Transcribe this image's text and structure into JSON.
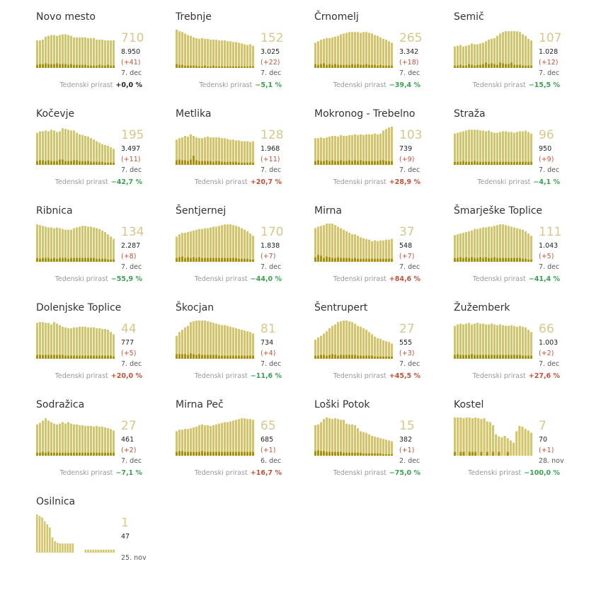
{
  "colors": {
    "area": "#d4c56a",
    "bar": "#a89008",
    "value": "#d6c88a",
    "neg": "#3aa055",
    "pos": "#c0513a"
  },
  "weekly_label": "Tedenski prirast",
  "chart_data": [
    {
      "type": "bar",
      "title": "Novo mesto",
      "big": "710",
      "total": "8.950",
      "change": "(+41)",
      "date": "7. dec",
      "weekly": "+0,0 %",
      "trend": "zero",
      "area": [
        72,
        72,
        74,
        82,
        84,
        86,
        86,
        84,
        86,
        88,
        88,
        86,
        84,
        80,
        80,
        80,
        80,
        80,
        78,
        78,
        78,
        74,
        74,
        74,
        72,
        72,
        72,
        72
      ],
      "bars": [
        8,
        10,
        10,
        12,
        10,
        10,
        10,
        12,
        10,
        10,
        10,
        8,
        10,
        8,
        8,
        8,
        8,
        8,
        6,
        6,
        6,
        6,
        8,
        6,
        6,
        8,
        6,
        6
      ]
    },
    {
      "type": "bar",
      "title": "Trebnje",
      "big": "152",
      "total": "3.025",
      "change": "(+22)",
      "date": "7. dec",
      "weekly": "−5,1 %",
      "trend": "neg",
      "area": [
        100,
        96,
        94,
        90,
        86,
        84,
        80,
        78,
        76,
        78,
        76,
        76,
        74,
        74,
        74,
        72,
        72,
        72,
        70,
        70,
        68,
        68,
        66,
        64,
        62,
        60,
        62,
        58
      ],
      "bars": [
        10,
        8,
        8,
        6,
        6,
        6,
        6,
        6,
        4,
        4,
        6,
        4,
        4,
        6,
        4,
        4,
        4,
        4,
        4,
        4,
        4,
        4,
        4,
        4,
        4,
        4,
        4,
        4
      ]
    },
    {
      "type": "bar",
      "title": "Črnomelj",
      "big": "265",
      "total": "3.342",
      "change": "(+18)",
      "date": "7. dec",
      "weekly": "−39,4 %",
      "trend": "neg",
      "area": [
        66,
        70,
        74,
        76,
        78,
        78,
        80,
        82,
        84,
        88,
        90,
        92,
        94,
        94,
        94,
        94,
        92,
        94,
        94,
        92,
        90,
        86,
        84,
        80,
        76,
        74,
        70,
        66
      ],
      "bars": [
        10,
        8,
        10,
        12,
        8,
        10,
        8,
        10,
        8,
        8,
        8,
        8,
        8,
        10,
        8,
        10,
        8,
        8,
        10,
        8,
        8,
        8,
        6,
        8,
        6,
        6,
        6,
        6
      ]
    },
    {
      "type": "bar",
      "title": "Semič",
      "big": "107",
      "total": "1.028",
      "change": "(+12)",
      "date": "7. dec",
      "weekly": "−15,5 %",
      "trend": "neg",
      "area": [
        56,
        58,
        60,
        56,
        58,
        60,
        64,
        62,
        62,
        64,
        66,
        70,
        74,
        76,
        78,
        84,
        90,
        94,
        96,
        96,
        96,
        96,
        96,
        94,
        88,
        84,
        76,
        72
      ],
      "bars": [
        6,
        6,
        8,
        6,
        6,
        10,
        8,
        6,
        8,
        8,
        10,
        14,
        10,
        12,
        10,
        8,
        14,
        12,
        10,
        10,
        14,
        8,
        8,
        8,
        6,
        6,
        6,
        6
      ]
    },
    {
      "type": "bar",
      "title": "Kočevje",
      "big": "195",
      "total": "3.497",
      "change": "(+11)",
      "date": "7. dec",
      "weekly": "−42,7 %",
      "trend": "neg",
      "area": [
        84,
        88,
        88,
        90,
        88,
        92,
        90,
        86,
        88,
        96,
        94,
        92,
        90,
        90,
        84,
        80,
        78,
        76,
        74,
        70,
        66,
        62,
        58,
        54,
        52,
        50,
        46,
        42
      ],
      "bars": [
        10,
        12,
        12,
        10,
        12,
        10,
        10,
        10,
        14,
        14,
        10,
        10,
        10,
        12,
        12,
        10,
        10,
        10,
        10,
        8,
        8,
        8,
        8,
        8,
        6,
        6,
        6,
        6
      ]
    },
    {
      "type": "bar",
      "title": "Metlika",
      "big": "128",
      "total": "1.968",
      "change": "(+11)",
      "date": "7. dec",
      "weekly": "+20,7 %",
      "trend": "pos",
      "area": [
        66,
        70,
        72,
        76,
        74,
        80,
        76,
        72,
        70,
        70,
        72,
        74,
        72,
        72,
        72,
        72,
        70,
        70,
        68,
        66,
        66,
        64,
        64,
        62,
        62,
        62,
        60,
        62
      ],
      "bars": [
        12,
        14,
        12,
        12,
        10,
        14,
        24,
        12,
        10,
        10,
        10,
        10,
        10,
        8,
        10,
        10,
        8,
        8,
        8,
        8,
        8,
        8,
        6,
        6,
        6,
        6,
        6,
        6
      ]
    },
    {
      "type": "bar",
      "title": "Mokronog - Trebelno",
      "big": "103",
      "total": "739",
      "change": "(+9)",
      "date": "7. dec",
      "weekly": "+28,9 %",
      "trend": "pos",
      "area": [
        70,
        70,
        72,
        70,
        72,
        74,
        76,
        76,
        74,
        78,
        76,
        76,
        78,
        78,
        80,
        78,
        80,
        78,
        80,
        80,
        80,
        82,
        80,
        82,
        90,
        94,
        98,
        100
      ],
      "bars": [
        10,
        12,
        10,
        10,
        12,
        10,
        12,
        10,
        10,
        12,
        10,
        10,
        12,
        10,
        12,
        10,
        12,
        10,
        10,
        10,
        10,
        10,
        10,
        12,
        12,
        10,
        10,
        10
      ]
    },
    {
      "type": "bar",
      "title": "Straža",
      "big": "96",
      "total": "950",
      "change": "(+9)",
      "date": "7. dec",
      "weekly": "−4,1 %",
      "trend": "neg",
      "area": [
        82,
        84,
        86,
        88,
        90,
        92,
        92,
        92,
        92,
        90,
        90,
        88,
        90,
        86,
        84,
        84,
        86,
        88,
        88,
        86,
        86,
        84,
        86,
        88,
        88,
        90,
        86,
        82
      ],
      "bars": [
        8,
        8,
        8,
        10,
        8,
        8,
        8,
        10,
        8,
        8,
        8,
        8,
        8,
        8,
        8,
        8,
        8,
        8,
        8,
        8,
        8,
        8,
        8,
        8,
        8,
        8,
        8,
        8
      ]
    },
    {
      "type": "bar",
      "title": "Ribnica",
      "big": "134",
      "total": "2.287",
      "change": "(+8)",
      "date": "7. dec",
      "weekly": "−55,9 %",
      "trend": "neg",
      "area": [
        98,
        96,
        94,
        92,
        90,
        90,
        88,
        90,
        88,
        86,
        84,
        84,
        84,
        88,
        90,
        92,
        94,
        94,
        92,
        92,
        90,
        88,
        86,
        82,
        78,
        72,
        66,
        60
      ],
      "bars": [
        10,
        8,
        10,
        10,
        10,
        8,
        10,
        8,
        10,
        10,
        10,
        8,
        10,
        10,
        10,
        10,
        10,
        10,
        10,
        10,
        10,
        8,
        8,
        8,
        8,
        6,
        6,
        6
      ]
    },
    {
      "type": "bar",
      "title": "Šentjernej",
      "big": "170",
      "total": "1.838",
      "change": "(+7)",
      "date": "7. dec",
      "weekly": "−44,0 %",
      "trend": "neg",
      "area": [
        66,
        72,
        76,
        76,
        78,
        80,
        82,
        84,
        86,
        86,
        88,
        88,
        90,
        92,
        92,
        94,
        96,
        98,
        98,
        98,
        96,
        94,
        92,
        88,
        84,
        80,
        74,
        68
      ],
      "bars": [
        10,
        12,
        14,
        10,
        12,
        10,
        12,
        10,
        12,
        10,
        10,
        10,
        10,
        10,
        10,
        10,
        10,
        10,
        10,
        10,
        10,
        10,
        8,
        8,
        8,
        8,
        6,
        6
      ]
    },
    {
      "type": "bar",
      "title": "Mirna",
      "big": "37",
      "total": "548",
      "change": "(+7)",
      "date": "7. dec",
      "weekly": "+84,6 %",
      "trend": "pos",
      "area": [
        88,
        92,
        94,
        96,
        100,
        104,
        100,
        96,
        92,
        88,
        84,
        80,
        76,
        72,
        72,
        68,
        64,
        62,
        60,
        58,
        54,
        56,
        54,
        56,
        56,
        58,
        58,
        60
      ],
      "bars": [
        12,
        18,
        16,
        10,
        14,
        12,
        10,
        10,
        12,
        10,
        10,
        10,
        10,
        8,
        10,
        8,
        8,
        8,
        8,
        8,
        8,
        8,
        8,
        8,
        8,
        8,
        8,
        8
      ]
    },
    {
      "type": "bar",
      "title": "Šmarješke Toplice",
      "big": "111",
      "total": "1.043",
      "change": "(+5)",
      "date": "7. dec",
      "weekly": "−41,4 %",
      "trend": "neg",
      "area": [
        70,
        72,
        74,
        76,
        78,
        80,
        82,
        86,
        86,
        88,
        90,
        90,
        92,
        92,
        94,
        96,
        98,
        98,
        96,
        94,
        92,
        90,
        88,
        86,
        84,
        80,
        74,
        68
      ],
      "bars": [
        10,
        10,
        12,
        10,
        12,
        10,
        12,
        10,
        10,
        12,
        10,
        12,
        10,
        10,
        12,
        10,
        10,
        10,
        10,
        10,
        10,
        10,
        10,
        10,
        8,
        8,
        6,
        6
      ]
    },
    {
      "type": "bar",
      "title": "Dolenjske Toplice",
      "big": "44",
      "total": "777",
      "change": "(+5)",
      "date": "7. dec",
      "weekly": "+20,0 %",
      "trend": "pos",
      "area": [
        94,
        96,
        96,
        94,
        94,
        90,
        96,
        92,
        88,
        84,
        82,
        80,
        80,
        82,
        82,
        84,
        84,
        84,
        82,
        82,
        82,
        80,
        80,
        78,
        78,
        76,
        70,
        64
      ],
      "bars": [
        10,
        10,
        10,
        10,
        10,
        10,
        10,
        10,
        10,
        10,
        8,
        8,
        8,
        8,
        8,
        8,
        8,
        8,
        8,
        8,
        8,
        8,
        8,
        8,
        8,
        8,
        8,
        6
      ]
    },
    {
      "type": "bar",
      "title": "Škocjan",
      "big": "81",
      "total": "734",
      "change": "(+4)",
      "date": "7. dec",
      "weekly": "−11,6 %",
      "trend": "neg",
      "area": [
        60,
        70,
        76,
        82,
        86,
        96,
        98,
        100,
        100,
        100,
        100,
        98,
        96,
        94,
        92,
        90,
        88,
        88,
        86,
        84,
        82,
        80,
        78,
        76,
        74,
        72,
        70,
        66
      ],
      "bars": [
        12,
        12,
        12,
        12,
        10,
        14,
        12,
        10,
        12,
        10,
        10,
        10,
        10,
        10,
        10,
        8,
        8,
        8,
        8,
        8,
        8,
        8,
        8,
        8,
        8,
        8,
        8,
        8
      ]
    },
    {
      "type": "bar",
      "title": "Šentrupert",
      "big": "27",
      "total": "555",
      "change": "(+3)",
      "date": "7. dec",
      "weekly": "+45,5 %",
      "trend": "pos",
      "area": [
        50,
        56,
        60,
        66,
        72,
        80,
        86,
        90,
        96,
        98,
        100,
        100,
        98,
        96,
        92,
        86,
        84,
        80,
        76,
        70,
        64,
        58,
        54,
        52,
        48,
        46,
        44,
        40
      ],
      "bars": [
        8,
        8,
        10,
        10,
        8,
        10,
        12,
        10,
        8,
        10,
        10,
        10,
        10,
        10,
        10,
        8,
        8,
        8,
        8,
        8,
        8,
        6,
        6,
        6,
        6,
        6,
        6,
        6
      ]
    },
    {
      "type": "bar",
      "title": "Žužemberk",
      "big": "66",
      "total": "1.003",
      "change": "(+2)",
      "date": "7. dec",
      "weekly": "+27,6 %",
      "trend": "pos",
      "area": [
        86,
        90,
        92,
        90,
        92,
        94,
        90,
        92,
        94,
        92,
        92,
        90,
        90,
        92,
        90,
        88,
        90,
        88,
        86,
        86,
        88,
        86,
        84,
        86,
        84,
        82,
        76,
        70
      ],
      "bars": [
        10,
        12,
        10,
        10,
        10,
        10,
        12,
        10,
        10,
        10,
        10,
        10,
        10,
        10,
        10,
        10,
        10,
        10,
        10,
        10,
        10,
        10,
        10,
        10,
        8,
        8,
        8,
        8
      ]
    },
    {
      "type": "bar",
      "title": "Sodražica",
      "big": "27",
      "total": "461",
      "change": "(+2)",
      "date": "7. dec",
      "weekly": "−7,1 %",
      "trend": "neg",
      "area": [
        82,
        86,
        92,
        98,
        92,
        88,
        84,
        82,
        84,
        88,
        84,
        88,
        84,
        82,
        82,
        80,
        80,
        78,
        78,
        78,
        76,
        78,
        76,
        76,
        74,
        72,
        70,
        66
      ],
      "bars": [
        8,
        8,
        10,
        8,
        10,
        8,
        8,
        8,
        8,
        8,
        8,
        8,
        8,
        8,
        8,
        8,
        8,
        8,
        8,
        8,
        8,
        8,
        8,
        8,
        8,
        8,
        8,
        8
      ]
    },
    {
      "type": "bar",
      "title": "Mirna Peč",
      "big": "65",
      "total": "685",
      "change": "(+1)",
      "date": "6. dec",
      "weekly": "+16,7 %",
      "trend": "pos",
      "area": [
        64,
        68,
        68,
        70,
        70,
        72,
        74,
        76,
        80,
        82,
        80,
        80,
        78,
        80,
        82,
        84,
        86,
        88,
        88,
        90,
        92,
        94,
        96,
        98,
        98,
        96,
        96,
        94
      ],
      "bars": [
        10,
        12,
        12,
        10,
        10,
        10,
        10,
        10,
        10,
        12,
        10,
        10,
        10,
        10,
        10,
        10,
        10,
        10,
        10,
        10,
        10,
        10,
        10,
        10,
        10,
        10,
        10,
        10
      ]
    },
    {
      "type": "bar",
      "title": "Loški Potok",
      "big": "15",
      "total": "382",
      "change": "(+1)",
      "date": "2. dec",
      "weekly": "−75,0 %",
      "trend": "neg",
      "area": [
        80,
        82,
        88,
        96,
        100,
        98,
        96,
        98,
        96,
        94,
        94,
        84,
        82,
        82,
        80,
        72,
        64,
        62,
        60,
        56,
        52,
        50,
        48,
        46,
        44,
        42,
        40,
        38
      ],
      "bars": [
        12,
        14,
        12,
        12,
        10,
        10,
        10,
        10,
        10,
        10,
        8,
        8,
        8,
        8,
        8,
        8,
        8,
        6,
        6,
        6,
        6,
        6,
        6,
        6,
        4,
        4,
        4,
        4
      ]
    },
    {
      "type": "bar",
      "title": "Kostel",
      "big": "7",
      "total": "70",
      "change": "(+1)",
      "date": "28. nov",
      "weekly": "−100,0 %",
      "trend": "neg",
      "area": [
        100,
        100,
        100,
        98,
        100,
        100,
        98,
        100,
        98,
        96,
        98,
        90,
        88,
        80,
        56,
        50,
        48,
        52,
        46,
        40,
        34,
        64,
        78,
        76,
        70,
        66,
        60
      ],
      "bars": [
        10,
        0,
        10,
        10,
        0,
        10,
        10,
        10,
        0,
        10,
        0,
        10,
        0,
        10,
        0,
        10,
        0,
        0,
        10,
        0,
        0,
        0,
        0,
        0,
        0,
        0,
        0
      ]
    },
    {
      "type": "bar",
      "title": "Osilnica",
      "big": "1",
      "total": "47",
      "change": "",
      "date": "25. nov",
      "weekly": "",
      "trend": "none",
      "area": [
        100,
        96,
        92,
        82,
        74,
        66,
        40,
        30,
        26,
        24,
        24,
        24,
        24,
        24,
        24,
        0,
        0,
        0,
        0,
        8,
        8,
        8,
        8,
        8,
        8,
        8,
        8,
        8,
        8,
        8,
        8
      ],
      "bars": [
        0,
        0,
        0,
        0,
        0,
        0,
        0,
        0,
        0,
        0,
        0,
        0,
        0,
        0,
        0,
        0,
        0,
        0,
        0,
        0,
        0,
        0,
        0,
        0,
        0,
        0,
        0,
        0,
        0,
        0,
        0
      ]
    }
  ]
}
